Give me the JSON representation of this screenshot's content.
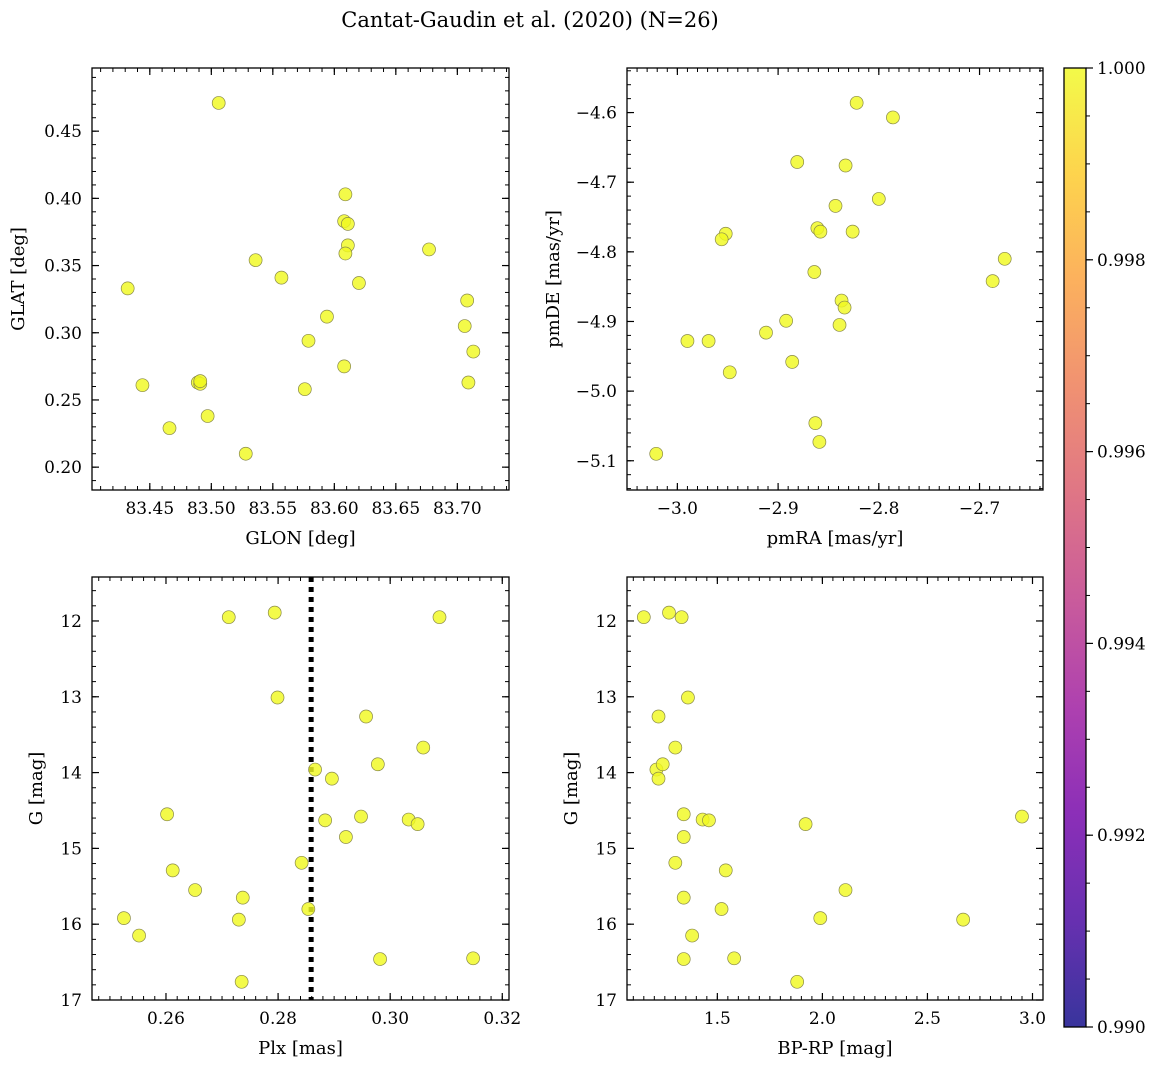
{
  "figure": {
    "title": "Cantat-Gaudin et al. (2020) (N=26)"
  },
  "chart_data": [
    {
      "type": "scatter",
      "panel": "top-left",
      "xlabel": "GLON [deg]",
      "ylabel": "GLAT [deg]",
      "xlim": [
        83.403,
        83.742
      ],
      "ylim": [
        0.183,
        0.497
      ],
      "y_inverted": false,
      "xticks": [
        83.45,
        83.5,
        83.55,
        83.6,
        83.65,
        83.7
      ],
      "xtick_labels": [
        "83.45",
        "83.50",
        "83.55",
        "83.60",
        "83.65",
        "83.70"
      ],
      "yticks": [
        0.2,
        0.25,
        0.3,
        0.35,
        0.4,
        0.45
      ],
      "ytick_labels": [
        "0.20",
        "0.25",
        "0.30",
        "0.35",
        "0.40",
        "0.45"
      ],
      "x_minor_step": 0.01,
      "y_minor_step": 0.01,
      "marker_color": "#f0f921",
      "points": [
        {
          "x": 83.506,
          "y": 0.471
        },
        {
          "x": 83.609,
          "y": 0.403
        },
        {
          "x": 83.608,
          "y": 0.383
        },
        {
          "x": 83.611,
          "y": 0.381
        },
        {
          "x": 83.611,
          "y": 0.365
        },
        {
          "x": 83.609,
          "y": 0.359
        },
        {
          "x": 83.677,
          "y": 0.362
        },
        {
          "x": 83.536,
          "y": 0.354
        },
        {
          "x": 83.557,
          "y": 0.341
        },
        {
          "x": 83.62,
          "y": 0.337
        },
        {
          "x": 83.432,
          "y": 0.333
        },
        {
          "x": 83.708,
          "y": 0.324
        },
        {
          "x": 83.594,
          "y": 0.312
        },
        {
          "x": 83.706,
          "y": 0.305
        },
        {
          "x": 83.579,
          "y": 0.294
        },
        {
          "x": 83.713,
          "y": 0.286
        },
        {
          "x": 83.608,
          "y": 0.275
        },
        {
          "x": 83.489,
          "y": 0.263
        },
        {
          "x": 83.491,
          "y": 0.262
        },
        {
          "x": 83.709,
          "y": 0.263
        },
        {
          "x": 83.444,
          "y": 0.261
        },
        {
          "x": 83.576,
          "y": 0.258
        },
        {
          "x": 83.497,
          "y": 0.238
        },
        {
          "x": 83.466,
          "y": 0.229
        },
        {
          "x": 83.528,
          "y": 0.21
        },
        {
          "x": 83.491,
          "y": 0.264
        }
      ]
    },
    {
      "type": "scatter",
      "panel": "top-right",
      "xlabel": "pmRA [mas/yr]",
      "ylabel": "pmDE [mas/yr]",
      "xlim": [
        -3.05,
        -2.637
      ],
      "ylim": [
        -5.142,
        -4.536
      ],
      "y_inverted": false,
      "xticks": [
        -3.0,
        -2.9,
        -2.8,
        -2.7
      ],
      "xtick_labels": [
        "−3.0",
        "−2.9",
        "−2.8",
        "−2.7"
      ],
      "yticks": [
        -5.1,
        -5.0,
        -4.9,
        -4.8,
        -4.7,
        -4.6
      ],
      "ytick_labels": [
        "−5.1",
        "−5.0",
        "−4.9",
        "−4.8",
        "−4.7",
        "−4.6"
      ],
      "x_minor_step": 0.01,
      "y_minor_step": 0.02,
      "marker_color": "#f0f921",
      "points": [
        {
          "x": -2.822,
          "y": -4.586
        },
        {
          "x": -2.786,
          "y": -4.607
        },
        {
          "x": -2.881,
          "y": -4.671
        },
        {
          "x": -2.833,
          "y": -4.676
        },
        {
          "x": -2.8,
          "y": -4.724
        },
        {
          "x": -2.843,
          "y": -4.734
        },
        {
          "x": -2.861,
          "y": -4.766
        },
        {
          "x": -2.858,
          "y": -4.771
        },
        {
          "x": -2.826,
          "y": -4.771
        },
        {
          "x": -2.952,
          "y": -4.774
        },
        {
          "x": -2.956,
          "y": -4.782
        },
        {
          "x": -2.675,
          "y": -4.81
        },
        {
          "x": -2.864,
          "y": -4.829
        },
        {
          "x": -2.687,
          "y": -4.842
        },
        {
          "x": -2.837,
          "y": -4.87
        },
        {
          "x": -2.834,
          "y": -4.88
        },
        {
          "x": -2.839,
          "y": -4.905
        },
        {
          "x": -2.892,
          "y": -4.899
        },
        {
          "x": -2.912,
          "y": -4.916
        },
        {
          "x": -2.99,
          "y": -4.928
        },
        {
          "x": -2.969,
          "y": -4.928
        },
        {
          "x": -2.886,
          "y": -4.958
        },
        {
          "x": -2.948,
          "y": -4.973
        },
        {
          "x": -2.863,
          "y": -5.046
        },
        {
          "x": -2.859,
          "y": -5.073
        },
        {
          "x": -3.021,
          "y": -5.09
        }
      ]
    },
    {
      "type": "scatter",
      "panel": "bottom-left",
      "xlabel": "Plx [mas]",
      "ylabel": "G [mag]",
      "xlim": [
        0.2468,
        0.3212
      ],
      "ylim": [
        17.0,
        11.42
      ],
      "y_inverted": true,
      "xticks": [
        0.26,
        0.28,
        0.3,
        0.32
      ],
      "xtick_labels": [
        "0.26",
        "0.28",
        "0.30",
        "0.32"
      ],
      "yticks": [
        12,
        13,
        14,
        15,
        16,
        17
      ],
      "ytick_labels": [
        "12",
        "13",
        "14",
        "15",
        "16",
        "17"
      ],
      "x_minor_step": 0.002,
      "y_minor_step": 0.2,
      "vline": {
        "x": 0.2859,
        "style": "dotted",
        "color": "#000000"
      },
      "marker_color": "#f0f921",
      "points": [
        {
          "x": 0.2712,
          "y": 11.95
        },
        {
          "x": 0.2794,
          "y": 11.89
        },
        {
          "x": 0.3088,
          "y": 11.95
        },
        {
          "x": 0.2799,
          "y": 13.01
        },
        {
          "x": 0.2957,
          "y": 13.26
        },
        {
          "x": 0.3059,
          "y": 13.67
        },
        {
          "x": 0.2866,
          "y": 13.96
        },
        {
          "x": 0.2978,
          "y": 13.89
        },
        {
          "x": 0.2896,
          "y": 14.08
        },
        {
          "x": 0.2602,
          "y": 14.55
        },
        {
          "x": 0.2948,
          "y": 14.58
        },
        {
          "x": 0.3033,
          "y": 14.62
        },
        {
          "x": 0.2884,
          "y": 14.63
        },
        {
          "x": 0.3049,
          "y": 14.68
        },
        {
          "x": 0.2921,
          "y": 14.85
        },
        {
          "x": 0.2842,
          "y": 15.19
        },
        {
          "x": 0.2612,
          "y": 15.29
        },
        {
          "x": 0.2652,
          "y": 15.55
        },
        {
          "x": 0.2737,
          "y": 15.65
        },
        {
          "x": 0.2854,
          "y": 15.8
        },
        {
          "x": 0.2525,
          "y": 15.92
        },
        {
          "x": 0.273,
          "y": 15.94
        },
        {
          "x": 0.2552,
          "y": 16.15
        },
        {
          "x": 0.2982,
          "y": 16.46
        },
        {
          "x": 0.3148,
          "y": 16.45
        },
        {
          "x": 0.2735,
          "y": 16.76
        }
      ]
    },
    {
      "type": "scatter",
      "panel": "bottom-right",
      "xlabel": "BP-RP [mag]",
      "ylabel": "G [mag]",
      "xlim": [
        1.07,
        3.05
      ],
      "ylim": [
        17.0,
        11.42
      ],
      "y_inverted": true,
      "xticks": [
        1.5,
        2.0,
        2.5,
        3.0
      ],
      "xtick_labels": [
        "1.5",
        "2.0",
        "2.5",
        "3.0"
      ],
      "yticks": [
        12,
        13,
        14,
        15,
        16,
        17
      ],
      "ytick_labels": [
        "12",
        "13",
        "14",
        "15",
        "16",
        "17"
      ],
      "x_minor_step": 0.05,
      "y_minor_step": 0.2,
      "marker_color": "#f0f921",
      "points": [
        {
          "x": 1.15,
          "y": 11.95
        },
        {
          "x": 1.27,
          "y": 11.89
        },
        {
          "x": 1.33,
          "y": 11.95
        },
        {
          "x": 1.36,
          "y": 13.01
        },
        {
          "x": 1.22,
          "y": 13.26
        },
        {
          "x": 1.3,
          "y": 13.67
        },
        {
          "x": 1.21,
          "y": 13.96
        },
        {
          "x": 1.24,
          "y": 13.89
        },
        {
          "x": 1.22,
          "y": 14.08
        },
        {
          "x": 1.34,
          "y": 14.55
        },
        {
          "x": 2.95,
          "y": 14.58
        },
        {
          "x": 1.43,
          "y": 14.62
        },
        {
          "x": 1.46,
          "y": 14.63
        },
        {
          "x": 1.92,
          "y": 14.68
        },
        {
          "x": 1.34,
          "y": 14.85
        },
        {
          "x": 1.3,
          "y": 15.19
        },
        {
          "x": 1.54,
          "y": 15.29
        },
        {
          "x": 2.11,
          "y": 15.55
        },
        {
          "x": 1.34,
          "y": 15.65
        },
        {
          "x": 1.52,
          "y": 15.8
        },
        {
          "x": 1.99,
          "y": 15.92
        },
        {
          "x": 2.67,
          "y": 15.94
        },
        {
          "x": 1.38,
          "y": 16.15
        },
        {
          "x": 1.34,
          "y": 16.46
        },
        {
          "x": 1.58,
          "y": 16.45
        },
        {
          "x": 1.88,
          "y": 16.76
        }
      ]
    }
  ],
  "colorbar": {
    "colormap": "plasma",
    "min": 0.99,
    "max": 1.0,
    "ticks": [
      0.99,
      0.992,
      0.994,
      0.996,
      0.998,
      1.0
    ],
    "tick_labels": [
      "0.990",
      "0.992",
      "0.994",
      "0.996",
      "0.998",
      "1.000"
    ],
    "minor_step": 0.0005,
    "colors": [
      "#0d0887",
      "#46039f",
      "#7201a8",
      "#9c179e",
      "#bd3786",
      "#d8576b",
      "#ed7953",
      "#fb9f3a",
      "#fdca26",
      "#f0f921"
    ]
  }
}
